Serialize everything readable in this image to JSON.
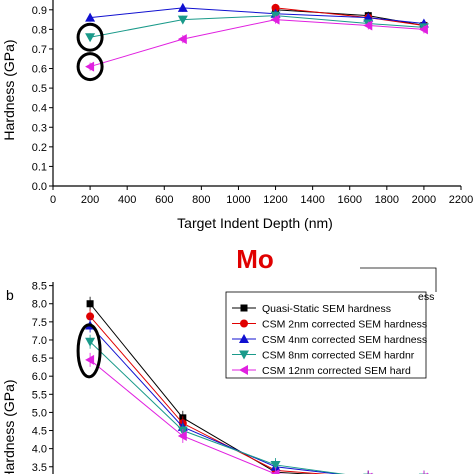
{
  "chart_data": [
    {
      "type": "line",
      "xlabel": "Target Indent Depth (nm)",
      "ylabel": "Hardness (GPa)",
      "xlim": [
        0,
        2200
      ],
      "ylim": [
        0.0,
        0.95
      ],
      "x_ticks": [
        "0",
        "200",
        "400",
        "600",
        "800",
        "1000",
        "1200",
        "1400",
        "1600",
        "1800",
        "2000",
        "2200"
      ],
      "y_ticks": [
        "0.0",
        "0.1",
        "0.2",
        "0.3",
        "0.4",
        "0.5",
        "0.6",
        "0.7",
        "0.8",
        "0.9"
      ],
      "series": [
        {
          "color": "#000000",
          "marker": "square",
          "x": [
            1200,
            1700,
            2000
          ],
          "y": [
            0.9,
            0.87,
            0.82
          ]
        },
        {
          "color": "#e00000",
          "marker": "circle",
          "x": [
            1200,
            1700,
            2000
          ],
          "y": [
            0.91,
            0.86,
            0.82
          ]
        },
        {
          "color": "#1010d0",
          "marker": "triangle-up",
          "x": [
            200,
            700,
            1200,
            1700,
            2000
          ],
          "y": [
            0.86,
            0.91,
            0.88,
            0.86,
            0.83
          ]
        },
        {
          "color": "#1a9a8a",
          "marker": "triangle-down",
          "x": [
            200,
            700,
            1200,
            1700,
            2000
          ],
          "y": [
            0.76,
            0.85,
            0.87,
            0.83,
            0.81
          ]
        },
        {
          "color": "#e020e0",
          "marker": "triangle-left",
          "x": [
            200,
            700,
            1200,
            1700,
            2000
          ],
          "y": [
            0.61,
            0.75,
            0.85,
            0.82,
            0.8
          ]
        }
      ],
      "circled_points": [
        {
          "x": 200,
          "y": 0.76
        },
        {
          "x": 200,
          "y": 0.61
        }
      ]
    },
    {
      "type": "line",
      "panel_label": "b",
      "title": "Mo",
      "ylabel": "Hardness (GPa)",
      "ylim": [
        3.3,
        8.6
      ],
      "y_ticks": [
        "3.5",
        "4.0",
        "4.5",
        "5.0",
        "5.5",
        "6.0",
        "6.5",
        "7.0",
        "7.5",
        "8.0",
        "8.5"
      ],
      "legend_position": "top-right",
      "series": [
        {
          "name": "Quasi-Static SEM hardness",
          "color": "#000000",
          "marker": "square",
          "x": [
            200,
            700,
            1200,
            1700,
            2000
          ],
          "y": [
            8.0,
            4.85,
            3.35,
            3.2,
            3.2
          ]
        },
        {
          "name": "CSM 2nm corrected SEM hardness",
          "color": "#e00000",
          "marker": "circle",
          "x": [
            200,
            700,
            1200,
            1700,
            2000
          ],
          "y": [
            7.65,
            4.7,
            3.4,
            3.2,
            3.2
          ]
        },
        {
          "name": "CSM 4nm corrected SEM hardness",
          "color": "#1010d0",
          "marker": "triangle-up",
          "x": [
            200,
            700,
            1200,
            1700,
            2000
          ],
          "y": [
            7.4,
            4.6,
            3.5,
            3.2,
            3.2
          ]
        },
        {
          "name": "CSM 8nm corrected SEM hardnr",
          "color": "#1a9a8a",
          "marker": "triangle-down",
          "x": [
            200,
            700,
            1200,
            1700,
            2000
          ],
          "y": [
            6.95,
            4.5,
            3.55,
            3.2,
            3.2
          ]
        },
        {
          "name": "CSM 12nm corrected SEM hard",
          "color": "#e020e0",
          "marker": "triangle-left",
          "x": [
            200,
            700,
            1200,
            1700,
            2000
          ],
          "y": [
            6.45,
            4.35,
            3.3,
            3.2,
            3.2
          ]
        }
      ],
      "legend_extra_text": "ess",
      "circled_points": [
        {
          "x": 200,
          "y": 6.95
        },
        {
          "x": 200,
          "y": 6.45
        }
      ]
    }
  ]
}
